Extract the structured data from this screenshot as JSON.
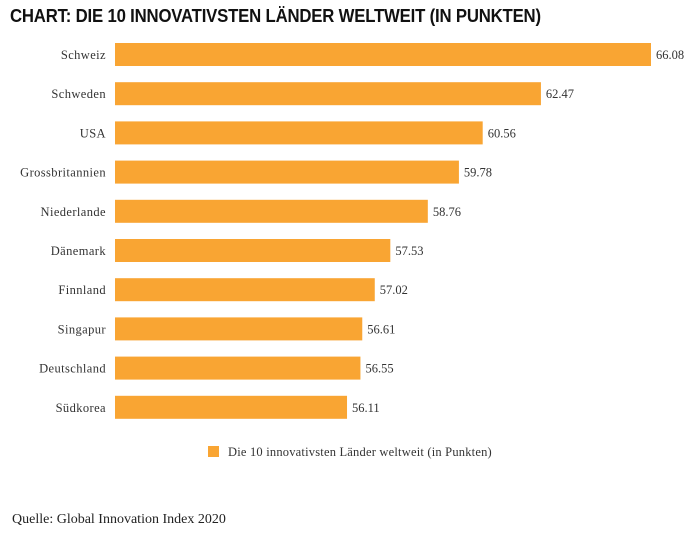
{
  "title": "CHART: DIE 10 INNOVATIVSTEN LÄNDER WELTWEIT (IN PUNKTEN)",
  "source": "Quelle: Global Innovation Index 2020",
  "colors": {
    "bar": "#F9A533"
  },
  "chart_data": {
    "type": "bar",
    "orientation": "horizontal",
    "categories": [
      "Schweiz",
      "Schweden",
      "USA",
      "Grossbritannien",
      "Niederlande",
      "Dänemark",
      "Finnland",
      "Singapur",
      "Deutschland",
      "Südkorea"
    ],
    "series": [
      {
        "name": "Die 10 innovativsten Länder weltweit (in Punkten)",
        "values": [
          66.08,
          62.47,
          60.56,
          59.78,
          58.76,
          57.53,
          57.02,
          56.61,
          56.55,
          56.11
        ]
      }
    ],
    "value_labels": [
      "66.08",
      "62.47",
      "60.56",
      "59.78",
      "58.76",
      "57.53",
      "57.02",
      "56.61",
      "56.55",
      "56.11"
    ],
    "xlim": [
      48.5,
      66.08
    ],
    "grid": false,
    "legend_position": "bottom"
  }
}
